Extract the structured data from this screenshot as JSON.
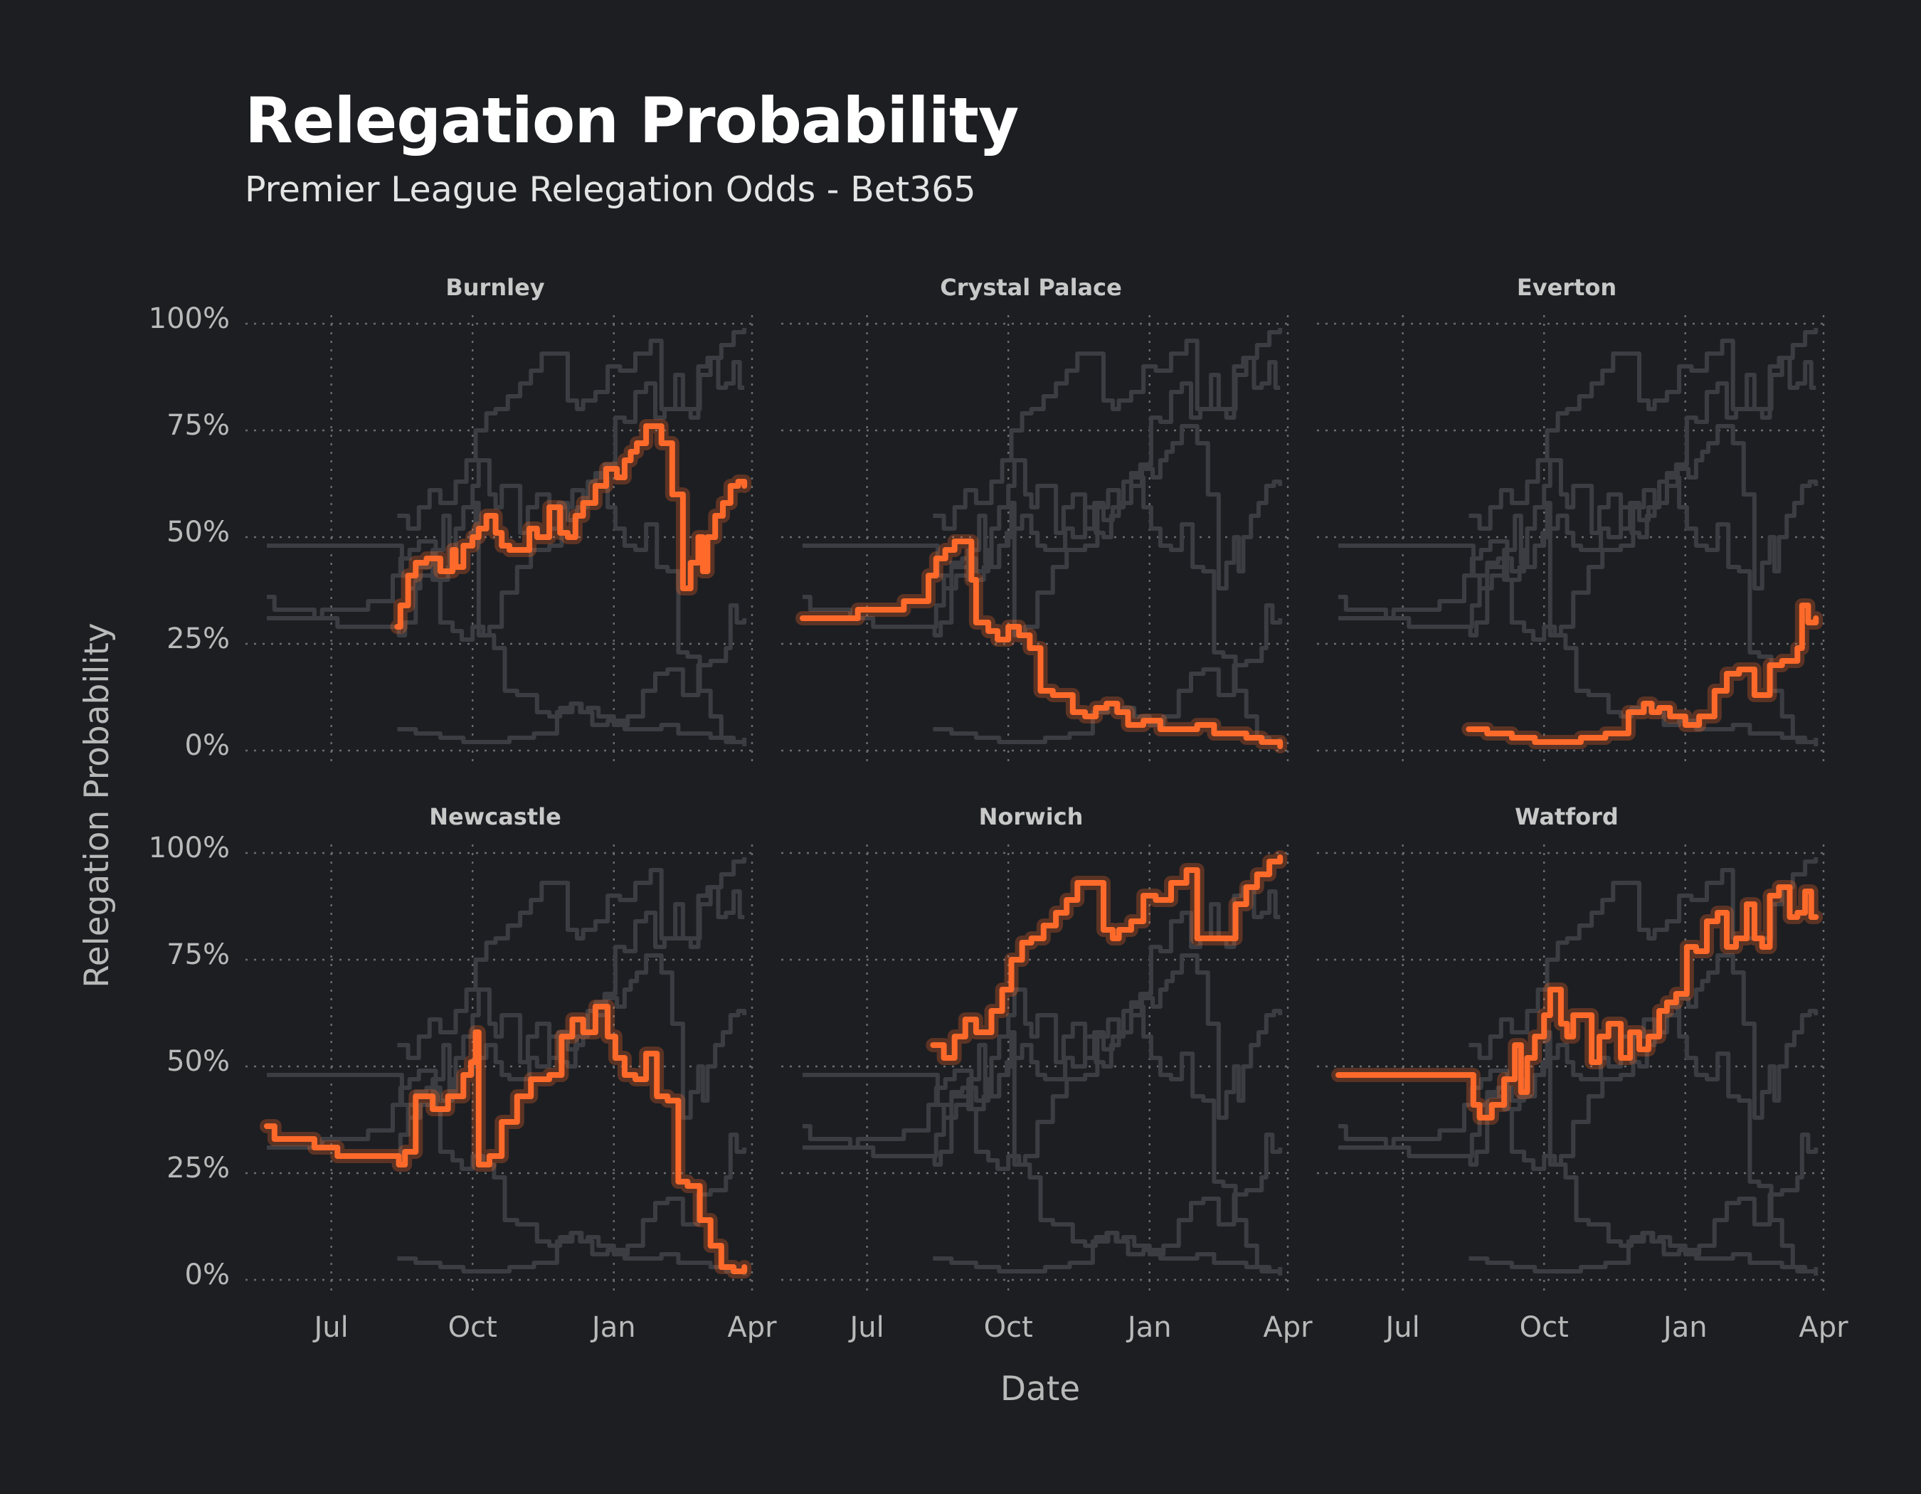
{
  "header": {
    "title": "Relegation Probability",
    "subtitle": "Premier League Relegation Odds - Bet365"
  },
  "chart_data": {
    "type": "line",
    "layout": "small-multiples",
    "xlabel": "Date",
    "ylabel": "Relegation Probability",
    "x_ticks": [
      "Jul",
      "Oct",
      "Jan",
      "Apr"
    ],
    "y_ticks": [
      "0%",
      "25%",
      "50%",
      "75%",
      "100%"
    ],
    "xlim": [
      "2021-05-20",
      "2022-04-01"
    ],
    "ylim": [
      0,
      1
    ],
    "grid": true,
    "colors": {
      "highlight": "#ff6a2a",
      "others": "#3b3d42",
      "background": "#1c1e22"
    },
    "series": [
      {
        "name": "Burnley",
        "x": [
          "2021-08-13",
          "2021-08-15",
          "2021-08-20",
          "2021-08-25",
          "2021-09-01",
          "2021-09-10",
          "2021-09-18",
          "2021-09-20",
          "2021-09-25",
          "2021-10-01",
          "2021-10-05",
          "2021-10-10",
          "2021-10-16",
          "2021-10-20",
          "2021-10-25",
          "2021-11-01",
          "2021-11-07",
          "2021-11-12",
          "2021-11-20",
          "2021-11-27",
          "2021-12-02",
          "2021-12-07",
          "2021-12-12",
          "2021-12-20",
          "2021-12-27",
          "2022-01-03",
          "2022-01-08",
          "2022-01-12",
          "2022-01-16",
          "2022-01-22",
          "2022-02-01",
          "2022-02-08",
          "2022-02-15",
          "2022-02-20",
          "2022-02-25",
          "2022-02-28",
          "2022-03-03",
          "2022-03-08",
          "2022-03-13",
          "2022-03-18",
          "2022-03-23",
          "2022-03-27"
        ],
        "y": [
          0.29,
          0.34,
          0.41,
          0.44,
          0.45,
          0.42,
          0.47,
          0.43,
          0.48,
          0.5,
          0.52,
          0.55,
          0.51,
          0.48,
          0.47,
          0.47,
          0.52,
          0.5,
          0.57,
          0.51,
          0.5,
          0.55,
          0.58,
          0.62,
          0.66,
          0.64,
          0.68,
          0.7,
          0.72,
          0.76,
          0.72,
          0.6,
          0.38,
          0.44,
          0.5,
          0.42,
          0.5,
          0.55,
          0.58,
          0.62,
          0.63,
          0.62
        ]
      },
      {
        "name": "Crystal Palace",
        "x": [
          "2021-05-20",
          "2021-06-10",
          "2021-06-25",
          "2021-07-10",
          "2021-07-25",
          "2021-08-05",
          "2021-08-10",
          "2021-08-15",
          "2021-08-21",
          "2021-08-27",
          "2021-09-02",
          "2021-09-07",
          "2021-09-10",
          "2021-09-18",
          "2021-09-24",
          "2021-10-01",
          "2021-10-08",
          "2021-10-15",
          "2021-10-22",
          "2021-10-30",
          "2021-11-05",
          "2021-11-12",
          "2021-11-20",
          "2021-11-27",
          "2021-12-04",
          "2021-12-11",
          "2021-12-18",
          "2021-12-28",
          "2022-01-08",
          "2022-01-20",
          "2022-02-01",
          "2022-02-12",
          "2022-02-23",
          "2022-03-05",
          "2022-03-15",
          "2022-03-27"
        ],
        "y": [
          0.31,
          0.31,
          0.33,
          0.33,
          0.35,
          0.35,
          0.41,
          0.45,
          0.47,
          0.49,
          0.49,
          0.4,
          0.3,
          0.28,
          0.26,
          0.29,
          0.27,
          0.24,
          0.14,
          0.13,
          0.13,
          0.09,
          0.08,
          0.1,
          0.11,
          0.09,
          0.06,
          0.07,
          0.05,
          0.05,
          0.06,
          0.04,
          0.04,
          0.03,
          0.02,
          0.01
        ]
      },
      {
        "name": "Everton",
        "x": [
          "2021-08-13",
          "2021-08-25",
          "2021-09-10",
          "2021-09-25",
          "2021-10-10",
          "2021-10-25",
          "2021-11-10",
          "2021-11-25",
          "2021-12-05",
          "2021-12-10",
          "2021-12-15",
          "2021-12-22",
          "2022-01-01",
          "2022-01-10",
          "2022-01-20",
          "2022-01-28",
          "2022-02-05",
          "2022-02-15",
          "2022-02-25",
          "2022-03-05",
          "2022-03-15",
          "2022-03-18",
          "2022-03-22",
          "2022-03-27"
        ],
        "y": [
          0.05,
          0.04,
          0.03,
          0.02,
          0.02,
          0.03,
          0.04,
          0.09,
          0.11,
          0.09,
          0.1,
          0.08,
          0.06,
          0.08,
          0.14,
          0.18,
          0.19,
          0.13,
          0.2,
          0.21,
          0.24,
          0.34,
          0.3,
          0.31
        ]
      },
      {
        "name": "Newcastle",
        "x": [
          "2021-05-20",
          "2021-05-25",
          "2021-06-20",
          "2021-07-05",
          "2021-08-10",
          "2021-08-14",
          "2021-08-18",
          "2021-08-25",
          "2021-09-05",
          "2021-09-15",
          "2021-09-25",
          "2021-09-30",
          "2021-10-03",
          "2021-10-05",
          "2021-10-12",
          "2021-10-20",
          "2021-10-30",
          "2021-11-08",
          "2021-11-20",
          "2021-11-28",
          "2021-12-05",
          "2021-12-12",
          "2021-12-20",
          "2021-12-28",
          "2022-01-02",
          "2022-01-08",
          "2022-01-15",
          "2022-01-22",
          "2022-01-29",
          "2022-02-05",
          "2022-02-12",
          "2022-02-18",
          "2022-02-26",
          "2022-03-05",
          "2022-03-12",
          "2022-03-20",
          "2022-03-27"
        ],
        "y": [
          0.36,
          0.33,
          0.31,
          0.29,
          0.29,
          0.27,
          0.3,
          0.43,
          0.4,
          0.43,
          0.48,
          0.51,
          0.58,
          0.27,
          0.29,
          0.37,
          0.43,
          0.47,
          0.48,
          0.57,
          0.61,
          0.58,
          0.64,
          0.57,
          0.52,
          0.48,
          0.47,
          0.53,
          0.43,
          0.42,
          0.23,
          0.22,
          0.14,
          0.08,
          0.03,
          0.02,
          0.03
        ]
      },
      {
        "name": "Norwich",
        "x": [
          "2021-08-13",
          "2021-08-20",
          "2021-08-27",
          "2021-09-03",
          "2021-09-10",
          "2021-09-20",
          "2021-09-27",
          "2021-10-03",
          "2021-10-10",
          "2021-10-16",
          "2021-10-24",
          "2021-11-01",
          "2021-11-08",
          "2021-11-15",
          "2021-11-25",
          "2021-12-02",
          "2021-12-08",
          "2021-12-12",
          "2021-12-20",
          "2021-12-28",
          "2022-01-05",
          "2022-01-15",
          "2022-01-25",
          "2022-02-01",
          "2022-02-10",
          "2022-02-18",
          "2022-02-26",
          "2022-03-05",
          "2022-03-12",
          "2022-03-20",
          "2022-03-27"
        ],
        "y": [
          0.55,
          0.52,
          0.57,
          0.61,
          0.58,
          0.63,
          0.68,
          0.75,
          0.79,
          0.8,
          0.83,
          0.86,
          0.89,
          0.93,
          0.93,
          0.82,
          0.8,
          0.82,
          0.84,
          0.9,
          0.89,
          0.93,
          0.96,
          0.8,
          0.8,
          0.8,
          0.88,
          0.92,
          0.95,
          0.98,
          0.99
        ]
      },
      {
        "name": "Watford",
        "x": [
          "2021-05-20",
          "2021-06-20",
          "2021-07-20",
          "2021-08-13",
          "2021-08-16",
          "2021-08-20",
          "2021-08-28",
          "2021-09-05",
          "2021-09-12",
          "2021-09-16",
          "2021-09-20",
          "2021-09-25",
          "2021-10-01",
          "2021-10-05",
          "2021-10-12",
          "2021-10-16",
          "2021-10-20",
          "2021-10-26",
          "2021-11-01",
          "2021-11-06",
          "2021-11-12",
          "2021-11-20",
          "2021-11-26",
          "2021-12-02",
          "2021-12-08",
          "2021-12-15",
          "2021-12-20",
          "2021-12-26",
          "2022-01-02",
          "2022-01-08",
          "2022-01-15",
          "2022-01-22",
          "2022-01-28",
          "2022-02-03",
          "2022-02-10",
          "2022-02-15",
          "2022-02-20",
          "2022-02-25",
          "2022-03-03",
          "2022-03-10",
          "2022-03-15",
          "2022-03-20",
          "2022-03-24",
          "2022-03-27"
        ],
        "y": [
          0.48,
          0.48,
          0.48,
          0.48,
          0.41,
          0.38,
          0.41,
          0.47,
          0.55,
          0.44,
          0.52,
          0.57,
          0.62,
          0.68,
          0.6,
          0.57,
          0.62,
          0.62,
          0.51,
          0.57,
          0.6,
          0.52,
          0.58,
          0.54,
          0.57,
          0.63,
          0.65,
          0.67,
          0.78,
          0.77,
          0.84,
          0.86,
          0.78,
          0.8,
          0.88,
          0.8,
          0.78,
          0.9,
          0.92,
          0.85,
          0.86,
          0.91,
          0.85,
          0.85
        ]
      }
    ]
  }
}
